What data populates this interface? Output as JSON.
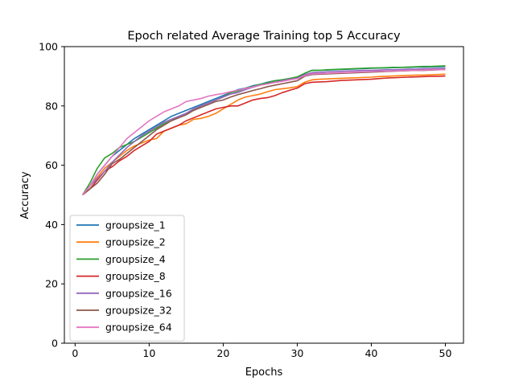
{
  "chart_data": {
    "type": "line",
    "title": "Epoch related Average Training top 5 Accuracy",
    "xlabel": "Epochs",
    "ylabel": "Accuracy",
    "xlim": [
      -1.45,
      52.45
    ],
    "ylim": [
      0,
      100
    ],
    "xticks": [
      0,
      10,
      20,
      30,
      40,
      50
    ],
    "yticks": [
      0,
      20,
      40,
      60,
      80,
      100
    ],
    "legend_position": "lower-left",
    "x": [
      1,
      2,
      3,
      4,
      5,
      6,
      7,
      8,
      9,
      10,
      11,
      12,
      13,
      14,
      15,
      16,
      17,
      18,
      19,
      20,
      21,
      22,
      23,
      24,
      25,
      26,
      27,
      28,
      29,
      30,
      31,
      32,
      33,
      34,
      35,
      36,
      37,
      38,
      39,
      40,
      41,
      42,
      43,
      44,
      45,
      46,
      47,
      48,
      49,
      50
    ],
    "series": [
      {
        "name": "groupsize_1",
        "color": "#1f77b4",
        "values": [
          50,
          53,
          57,
          60,
          63,
          65,
          67,
          69,
          70.5,
          72,
          73.5,
          75,
          76.5,
          77.5,
          78.5,
          79.5,
          80.5,
          81.5,
          82.5,
          83.5,
          84.5,
          85.5,
          86,
          86.8,
          87.3,
          88,
          88.5,
          88.8,
          89.2,
          89.5,
          91,
          92,
          92,
          92.1,
          92.2,
          92.3,
          92.4,
          92.5,
          92.6,
          92.7,
          92.8,
          92.8,
          92.9,
          93,
          93,
          93.1,
          93.1,
          93.2,
          93.2,
          93.3
        ]
      },
      {
        "name": "groupsize_2",
        "color": "#ff7f0e",
        "values": [
          50,
          53,
          56,
          59,
          61,
          63,
          65,
          66.5,
          67.5,
          68.5,
          69,
          71.5,
          72.5,
          73.5,
          74,
          75.5,
          75.8,
          76.5,
          77.5,
          79,
          80.5,
          82,
          83,
          83.5,
          84,
          84.8,
          85.5,
          85.8,
          86.1,
          86.5,
          88,
          88.8,
          89,
          89.1,
          89.2,
          89.3,
          89.4,
          89.5,
          89.6,
          89.7,
          89.9,
          90,
          90.1,
          90.2,
          90.3,
          90.4,
          90.4,
          90.5,
          90.6,
          90.7
        ]
      },
      {
        "name": "groupsize_4",
        "color": "#2ca02c",
        "values": [
          50,
          54,
          59,
          62.5,
          64,
          66,
          67,
          68,
          69.5,
          71,
          72.5,
          74,
          75,
          76.5,
          77.5,
          78.5,
          80,
          81,
          82,
          83,
          84.5,
          85,
          86,
          86.5,
          87.3,
          87.8,
          88.5,
          88.8,
          89.3,
          89.8,
          91,
          92,
          92,
          92.2,
          92.3,
          92.4,
          92.5,
          92.6,
          92.7,
          92.8,
          92.8,
          92.9,
          93,
          93,
          93.1,
          93.2,
          93.3,
          93.3,
          93.4,
          93.5
        ]
      },
      {
        "name": "groupsize_8",
        "color": "#d62728",
        "values": [
          50,
          52,
          55,
          58,
          59.5,
          61.5,
          63,
          65,
          66.5,
          68,
          70.5,
          71.5,
          72.5,
          73.5,
          75,
          76,
          77,
          78,
          79,
          79.5,
          80,
          80,
          81,
          82,
          82.5,
          82.8,
          83.5,
          84.5,
          85.3,
          86,
          87.5,
          88,
          88.1,
          88.2,
          88.4,
          88.6,
          88.7,
          88.8,
          88.9,
          89,
          89.2,
          89.4,
          89.5,
          89.6,
          89.7,
          89.8,
          89.9,
          90,
          90,
          90.1
        ]
      },
      {
        "name": "groupsize_16",
        "color": "#9467bd",
        "values": [
          50,
          53,
          55.5,
          58,
          61,
          63.5,
          66,
          68,
          70,
          71.5,
          73,
          74.5,
          75.5,
          76.5,
          77.5,
          79,
          80,
          81,
          82,
          83,
          84,
          84.5,
          85.5,
          86.3,
          87,
          87.5,
          88,
          88.5,
          89,
          89.3,
          90.5,
          91.2,
          91.3,
          91.5,
          91.6,
          91.7,
          91.8,
          91.9,
          92,
          92,
          92.1,
          92.2,
          92.2,
          92.3,
          92.4,
          92.4,
          92.5,
          92.6,
          92.6,
          92.7
        ]
      },
      {
        "name": "groupsize_32",
        "color": "#8c564b",
        "values": [
          50,
          52,
          54,
          57,
          60.5,
          62,
          64,
          66,
          68,
          70,
          72,
          73.5,
          75,
          76,
          77,
          78.5,
          79.5,
          80.5,
          81.5,
          82,
          83,
          83.8,
          84.5,
          85.2,
          85.8,
          86.5,
          87,
          87.5,
          88,
          88.5,
          90,
          90.6,
          90.7,
          90.8,
          90.9,
          91,
          91.1,
          91.2,
          91.3,
          91.4,
          91.5,
          91.6,
          91.7,
          91.8,
          91.9,
          92,
          92,
          92.1,
          92.2,
          92.3
        ]
      },
      {
        "name": "groupsize_64",
        "color": "#e377c2",
        "values": [
          50,
          53,
          57,
          60,
          63,
          66,
          69,
          71,
          73,
          75,
          76.5,
          78,
          79,
          80,
          81.5,
          82,
          82.5,
          83.3,
          83.8,
          84.2,
          84.8,
          85.3,
          85.9,
          86.4,
          87,
          87.4,
          87.9,
          88.3,
          88.8,
          89.2,
          90.2,
          90.8,
          90.9,
          91,
          91.1,
          91.2,
          91.3,
          91.4,
          91.5,
          91.6,
          91.7,
          91.7,
          91.8,
          91.9,
          92,
          92,
          92.1,
          92.2,
          92.2,
          92.3
        ]
      }
    ]
  }
}
